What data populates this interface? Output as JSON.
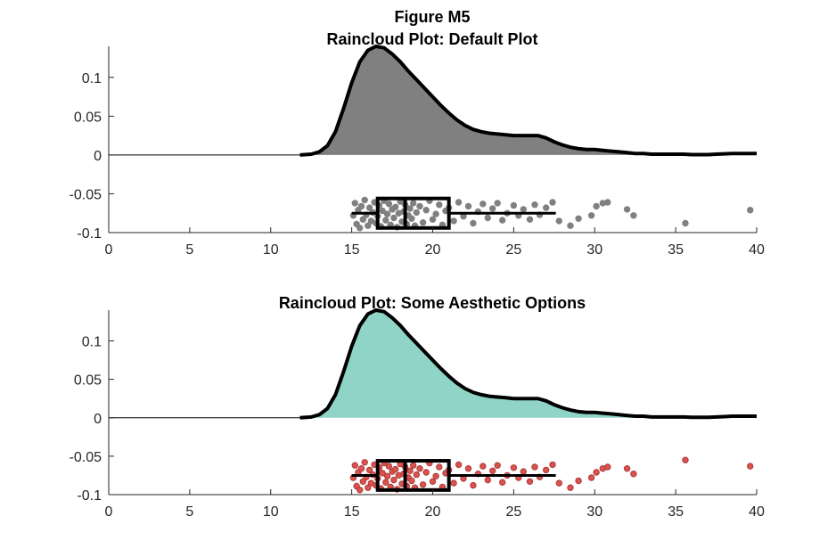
{
  "figure": {
    "super_title": "Figure M5"
  },
  "chart_data": [
    {
      "type": "raincloud",
      "title": "Raincloud Plot: Default Plot",
      "xlabel": "",
      "ylabel": "",
      "xlim": [
        0,
        40
      ],
      "ylim": [
        -0.1,
        0.14
      ],
      "x_ticks": [
        0,
        5,
        10,
        15,
        20,
        25,
        30,
        35,
        40
      ],
      "x_tick_labels": [
        "0",
        "5",
        "10",
        "15",
        "20",
        "25",
        "30",
        "35",
        "40"
      ],
      "y_ticks": [
        -0.1,
        -0.05,
        0,
        0.05,
        0.1
      ],
      "y_tick_labels": [
        "-0.1",
        "-0.05",
        "0",
        "0.05",
        "0.1"
      ],
      "grid": false,
      "cloud_color": "#808080",
      "rain_fill": "#808080",
      "rain_edge": "#808080",
      "density": {
        "x": [
          11.8,
          12.5,
          13.0,
          13.5,
          14.0,
          14.5,
          15.0,
          15.5,
          16.0,
          16.5,
          17.0,
          17.5,
          18.0,
          18.5,
          19.0,
          19.5,
          20.0,
          20.5,
          21.0,
          21.5,
          22.0,
          22.5,
          23.0,
          23.5,
          24.0,
          24.5,
          25.0,
          25.5,
          26.0,
          26.5,
          27.0,
          27.5,
          28.0,
          28.5,
          29.0,
          29.5,
          30.0,
          30.5,
          31.0,
          31.5,
          32.0,
          32.5,
          33.0,
          33.5,
          34.0,
          34.5,
          35.0,
          35.5,
          36.0,
          36.5,
          37.0,
          37.5,
          38.0,
          38.5,
          39.0,
          39.5,
          40.0
        ],
        "y": [
          0.0,
          0.001,
          0.004,
          0.012,
          0.03,
          0.06,
          0.093,
          0.12,
          0.135,
          0.14,
          0.138,
          0.13,
          0.12,
          0.108,
          0.097,
          0.086,
          0.075,
          0.064,
          0.054,
          0.045,
          0.038,
          0.033,
          0.03,
          0.028,
          0.027,
          0.026,
          0.025,
          0.025,
          0.025,
          0.025,
          0.022,
          0.017,
          0.013,
          0.01,
          0.008,
          0.007,
          0.007,
          0.006,
          0.005,
          0.004,
          0.003,
          0.002,
          0.002,
          0.001,
          0.001,
          0.001,
          0.001,
          0.001,
          0.0005,
          0.0005,
          0.0005,
          0.001,
          0.0015,
          0.002,
          0.002,
          0.002,
          0.002
        ]
      },
      "box": {
        "whisker_low": 15.0,
        "q1": 16.6,
        "median": 18.3,
        "q3": 21.0,
        "whisker_high": 27.6,
        "y_center": -0.075,
        "y_half_height": 0.019
      },
      "points": [
        {
          "x": 15.1,
          "y": -0.078
        },
        {
          "x": 15.2,
          "y": -0.062
        },
        {
          "x": 15.3,
          "y": -0.089
        },
        {
          "x": 15.4,
          "y": -0.071
        },
        {
          "x": 15.5,
          "y": -0.094
        },
        {
          "x": 15.6,
          "y": -0.066
        },
        {
          "x": 15.7,
          "y": -0.083
        },
        {
          "x": 15.8,
          "y": -0.058
        },
        {
          "x": 15.9,
          "y": -0.077
        },
        {
          "x": 16.0,
          "y": -0.091
        },
        {
          "x": 16.1,
          "y": -0.068
        },
        {
          "x": 16.2,
          "y": -0.085
        },
        {
          "x": 16.3,
          "y": -0.074
        },
        {
          "x": 16.4,
          "y": -0.061
        },
        {
          "x": 16.5,
          "y": -0.088
        },
        {
          "x": 16.6,
          "y": -0.079
        },
        {
          "x": 16.7,
          "y": -0.065
        },
        {
          "x": 16.8,
          "y": -0.092
        },
        {
          "x": 16.9,
          "y": -0.072
        },
        {
          "x": 17.0,
          "y": -0.059
        },
        {
          "x": 17.1,
          "y": -0.084
        },
        {
          "x": 17.2,
          "y": -0.076
        },
        {
          "x": 17.3,
          "y": -0.063
        },
        {
          "x": 17.4,
          "y": -0.09
        },
        {
          "x": 17.5,
          "y": -0.07
        },
        {
          "x": 17.6,
          "y": -0.081
        },
        {
          "x": 17.7,
          "y": -0.067
        },
        {
          "x": 17.8,
          "y": -0.093
        },
        {
          "x": 17.9,
          "y": -0.075
        },
        {
          "x": 18.0,
          "y": -0.06
        },
        {
          "x": 18.1,
          "y": -0.086
        },
        {
          "x": 18.2,
          "y": -0.073
        },
        {
          "x": 18.3,
          "y": -0.064
        },
        {
          "x": 18.4,
          "y": -0.089
        },
        {
          "x": 18.5,
          "y": -0.078
        },
        {
          "x": 18.6,
          "y": -0.069
        },
        {
          "x": 18.7,
          "y": -0.082
        },
        {
          "x": 18.8,
          "y": -0.062
        },
        {
          "x": 18.9,
          "y": -0.091
        },
        {
          "x": 19.0,
          "y": -0.074
        },
        {
          "x": 19.2,
          "y": -0.066
        },
        {
          "x": 19.4,
          "y": -0.087
        },
        {
          "x": 19.6,
          "y": -0.071
        },
        {
          "x": 19.8,
          "y": -0.059
        },
        {
          "x": 20.0,
          "y": -0.083
        },
        {
          "x": 20.2,
          "y": -0.076
        },
        {
          "x": 20.4,
          "y": -0.064
        },
        {
          "x": 20.6,
          "y": -0.09
        },
        {
          "x": 20.8,
          "y": -0.072
        },
        {
          "x": 21.0,
          "y": -0.068
        },
        {
          "x": 21.3,
          "y": -0.085
        },
        {
          "x": 21.6,
          "y": -0.061
        },
        {
          "x": 21.9,
          "y": -0.079
        },
        {
          "x": 22.2,
          "y": -0.066
        },
        {
          "x": 22.5,
          "y": -0.088
        },
        {
          "x": 22.8,
          "y": -0.073
        },
        {
          "x": 23.1,
          "y": -0.063
        },
        {
          "x": 23.4,
          "y": -0.081
        },
        {
          "x": 23.7,
          "y": -0.069
        },
        {
          "x": 24.0,
          "y": -0.062
        },
        {
          "x": 24.3,
          "y": -0.084
        },
        {
          "x": 24.6,
          "y": -0.075
        },
        {
          "x": 25.0,
          "y": -0.065
        },
        {
          "x": 25.3,
          "y": -0.078
        },
        {
          "x": 25.6,
          "y": -0.07
        },
        {
          "x": 26.0,
          "y": -0.083
        },
        {
          "x": 26.3,
          "y": -0.064
        },
        {
          "x": 26.6,
          "y": -0.077
        },
        {
          "x": 27.0,
          "y": -0.068
        },
        {
          "x": 27.4,
          "y": -0.061
        },
        {
          "x": 27.8,
          "y": -0.085
        },
        {
          "x": 28.5,
          "y": -0.091
        },
        {
          "x": 29.0,
          "y": -0.082
        },
        {
          "x": 29.8,
          "y": -0.078
        },
        {
          "x": 30.1,
          "y": -0.066
        },
        {
          "x": 30.5,
          "y": -0.062
        },
        {
          "x": 30.8,
          "y": -0.061
        },
        {
          "x": 32.0,
          "y": -0.07
        },
        {
          "x": 32.4,
          "y": -0.078
        },
        {
          "x": 35.6,
          "y": -0.088
        },
        {
          "x": 39.6,
          "y": -0.071
        }
      ]
    },
    {
      "type": "raincloud",
      "title": "Raincloud Plot: Some Aesthetic Options",
      "xlabel": "",
      "ylabel": "",
      "xlim": [
        0,
        40
      ],
      "ylim": [
        -0.1,
        0.14
      ],
      "x_ticks": [
        0,
        5,
        10,
        15,
        20,
        25,
        30,
        35,
        40
      ],
      "x_tick_labels": [
        "0",
        "5",
        "10",
        "15",
        "20",
        "25",
        "30",
        "35",
        "40"
      ],
      "y_ticks": [
        -0.1,
        -0.05,
        0,
        0.05,
        0.1
      ],
      "y_tick_labels": [
        "-0.1",
        "-0.05",
        "0",
        "0.05",
        "0.1"
      ],
      "grid": false,
      "cloud_color": "#8fd4c7",
      "rain_fill": "#d9534f",
      "rain_edge": "#b03a3a",
      "density": {
        "x": [
          11.8,
          12.5,
          13.0,
          13.5,
          14.0,
          14.5,
          15.0,
          15.5,
          16.0,
          16.5,
          17.0,
          17.5,
          18.0,
          18.5,
          19.0,
          19.5,
          20.0,
          20.5,
          21.0,
          21.5,
          22.0,
          22.5,
          23.0,
          23.5,
          24.0,
          24.5,
          25.0,
          25.5,
          26.0,
          26.5,
          27.0,
          27.5,
          28.0,
          28.5,
          29.0,
          29.5,
          30.0,
          30.5,
          31.0,
          31.5,
          32.0,
          32.5,
          33.0,
          33.5,
          34.0,
          34.5,
          35.0,
          35.5,
          36.0,
          36.5,
          37.0,
          37.5,
          38.0,
          38.5,
          39.0,
          39.5,
          40.0
        ],
        "y": [
          0.0,
          0.001,
          0.004,
          0.012,
          0.03,
          0.06,
          0.093,
          0.12,
          0.135,
          0.14,
          0.138,
          0.13,
          0.12,
          0.108,
          0.097,
          0.086,
          0.075,
          0.064,
          0.054,
          0.045,
          0.038,
          0.033,
          0.03,
          0.028,
          0.027,
          0.026,
          0.025,
          0.025,
          0.025,
          0.025,
          0.022,
          0.017,
          0.013,
          0.01,
          0.008,
          0.007,
          0.007,
          0.006,
          0.005,
          0.004,
          0.003,
          0.002,
          0.002,
          0.001,
          0.001,
          0.001,
          0.001,
          0.001,
          0.0005,
          0.0005,
          0.0005,
          0.001,
          0.0015,
          0.002,
          0.002,
          0.002,
          0.002
        ]
      },
      "box": {
        "whisker_low": 15.0,
        "q1": 16.6,
        "median": 18.3,
        "q3": 21.0,
        "whisker_high": 27.6,
        "y_center": -0.075,
        "y_half_height": 0.019
      },
      "points": [
        {
          "x": 15.1,
          "y": -0.078
        },
        {
          "x": 15.2,
          "y": -0.062
        },
        {
          "x": 15.3,
          "y": -0.089
        },
        {
          "x": 15.4,
          "y": -0.071
        },
        {
          "x": 15.5,
          "y": -0.094
        },
        {
          "x": 15.6,
          "y": -0.066
        },
        {
          "x": 15.7,
          "y": -0.083
        },
        {
          "x": 15.8,
          "y": -0.058
        },
        {
          "x": 15.9,
          "y": -0.077
        },
        {
          "x": 16.0,
          "y": -0.091
        },
        {
          "x": 16.1,
          "y": -0.068
        },
        {
          "x": 16.2,
          "y": -0.085
        },
        {
          "x": 16.3,
          "y": -0.074
        },
        {
          "x": 16.4,
          "y": -0.061
        },
        {
          "x": 16.5,
          "y": -0.088
        },
        {
          "x": 16.6,
          "y": -0.079
        },
        {
          "x": 16.7,
          "y": -0.065
        },
        {
          "x": 16.8,
          "y": -0.092
        },
        {
          "x": 16.9,
          "y": -0.072
        },
        {
          "x": 17.0,
          "y": -0.059
        },
        {
          "x": 17.1,
          "y": -0.084
        },
        {
          "x": 17.2,
          "y": -0.076
        },
        {
          "x": 17.3,
          "y": -0.063
        },
        {
          "x": 17.4,
          "y": -0.09
        },
        {
          "x": 17.5,
          "y": -0.07
        },
        {
          "x": 17.6,
          "y": -0.081
        },
        {
          "x": 17.7,
          "y": -0.067
        },
        {
          "x": 17.8,
          "y": -0.093
        },
        {
          "x": 17.9,
          "y": -0.075
        },
        {
          "x": 18.0,
          "y": -0.06
        },
        {
          "x": 18.1,
          "y": -0.086
        },
        {
          "x": 18.2,
          "y": -0.073
        },
        {
          "x": 18.3,
          "y": -0.064
        },
        {
          "x": 18.4,
          "y": -0.089
        },
        {
          "x": 18.5,
          "y": -0.078
        },
        {
          "x": 18.6,
          "y": -0.069
        },
        {
          "x": 18.7,
          "y": -0.082
        },
        {
          "x": 18.8,
          "y": -0.062
        },
        {
          "x": 18.9,
          "y": -0.091
        },
        {
          "x": 19.0,
          "y": -0.074
        },
        {
          "x": 19.2,
          "y": -0.066
        },
        {
          "x": 19.4,
          "y": -0.087
        },
        {
          "x": 19.6,
          "y": -0.071
        },
        {
          "x": 19.8,
          "y": -0.059
        },
        {
          "x": 20.0,
          "y": -0.083
        },
        {
          "x": 20.2,
          "y": -0.076
        },
        {
          "x": 20.4,
          "y": -0.064
        },
        {
          "x": 20.6,
          "y": -0.09
        },
        {
          "x": 20.8,
          "y": -0.072
        },
        {
          "x": 21.0,
          "y": -0.068
        },
        {
          "x": 21.3,
          "y": -0.085
        },
        {
          "x": 21.6,
          "y": -0.061
        },
        {
          "x": 21.9,
          "y": -0.079
        },
        {
          "x": 22.2,
          "y": -0.066
        },
        {
          "x": 22.5,
          "y": -0.088
        },
        {
          "x": 22.8,
          "y": -0.073
        },
        {
          "x": 23.1,
          "y": -0.063
        },
        {
          "x": 23.4,
          "y": -0.081
        },
        {
          "x": 23.7,
          "y": -0.069
        },
        {
          "x": 24.0,
          "y": -0.062
        },
        {
          "x": 24.3,
          "y": -0.084
        },
        {
          "x": 24.6,
          "y": -0.075
        },
        {
          "x": 25.0,
          "y": -0.065
        },
        {
          "x": 25.3,
          "y": -0.078
        },
        {
          "x": 25.6,
          "y": -0.07
        },
        {
          "x": 26.0,
          "y": -0.083
        },
        {
          "x": 26.3,
          "y": -0.064
        },
        {
          "x": 26.6,
          "y": -0.077
        },
        {
          "x": 27.0,
          "y": -0.068
        },
        {
          "x": 27.4,
          "y": -0.061
        },
        {
          "x": 27.8,
          "y": -0.085
        },
        {
          "x": 28.5,
          "y": -0.091
        },
        {
          "x": 29.0,
          "y": -0.082
        },
        {
          "x": 29.8,
          "y": -0.078
        },
        {
          "x": 30.1,
          "y": -0.071
        },
        {
          "x": 30.5,
          "y": -0.066
        },
        {
          "x": 30.8,
          "y": -0.064
        },
        {
          "x": 32.0,
          "y": -0.066
        },
        {
          "x": 32.4,
          "y": -0.073
        },
        {
          "x": 35.6,
          "y": -0.055
        },
        {
          "x": 39.6,
          "y": -0.063
        }
      ]
    }
  ]
}
